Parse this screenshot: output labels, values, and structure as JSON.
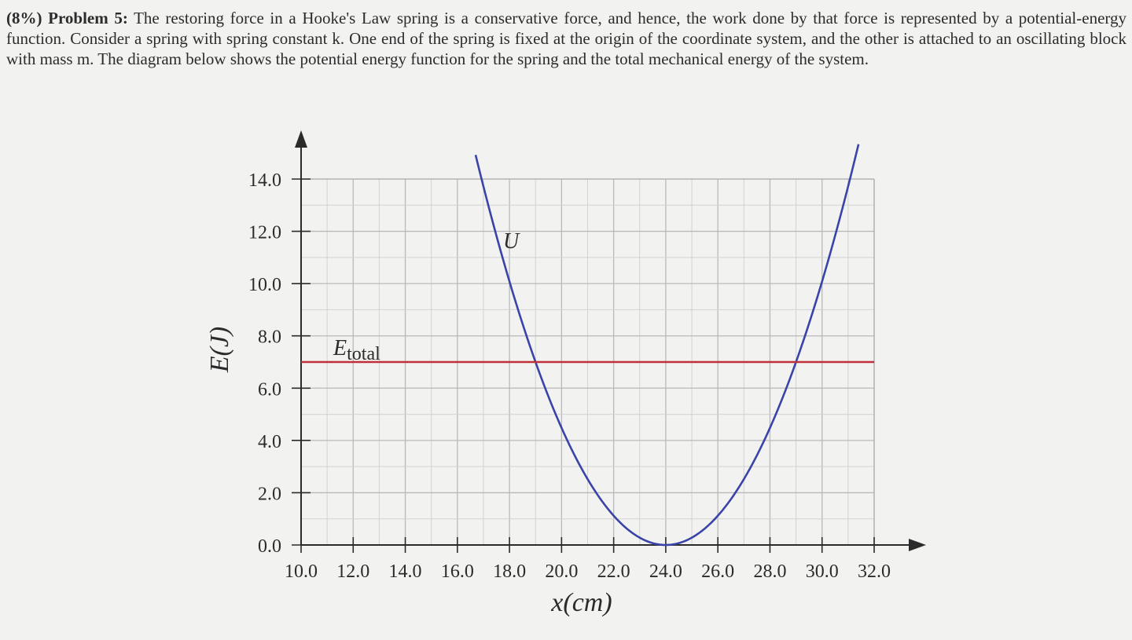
{
  "problem": {
    "lead": "(8%) Problem 5:",
    "text": "The restoring force in a Hooke's Law spring is a conservative force, and hence, the work done by that force is represented by a potential-energy function. Consider a spring with spring constant k. One end of the spring is fixed at the origin of the coordinate system, and the other is attached to an oscillating block with mass m. The diagram below shows the potential energy function for the spring and the total mechanical energy of the system."
  },
  "chart_data": {
    "type": "line",
    "title": "",
    "xlabel": "x(cm)",
    "ylabel": "E(J)",
    "xlim": [
      10.0,
      32.0
    ],
    "ylim": [
      0.0,
      14.0
    ],
    "x_ticks": [
      "10.0",
      "12.0",
      "14.0",
      "16.0",
      "18.0",
      "20.0",
      "22.0",
      "24.0",
      "26.0",
      "28.0",
      "30.0",
      "32.0"
    ],
    "y_ticks": [
      "0.0",
      "2.0",
      "4.0",
      "6.0",
      "8.0",
      "10.0",
      "12.0",
      "14.0"
    ],
    "grid": true,
    "series": [
      {
        "name": "U",
        "color": "#3a44a8",
        "kind": "parabola",
        "vertex_x": 24.0,
        "vertex_y": 0.0,
        "x": [
          16.7,
          19.0,
          24.0,
          29.0,
          31.4
        ],
        "y": [
          15.0,
          7.0,
          0.0,
          7.0,
          15.0
        ]
      },
      {
        "name": "Etotal",
        "color": "#c0303a",
        "kind": "hline",
        "x": [
          10.0,
          32.0
        ],
        "y": [
          7.0,
          7.0
        ]
      }
    ]
  }
}
